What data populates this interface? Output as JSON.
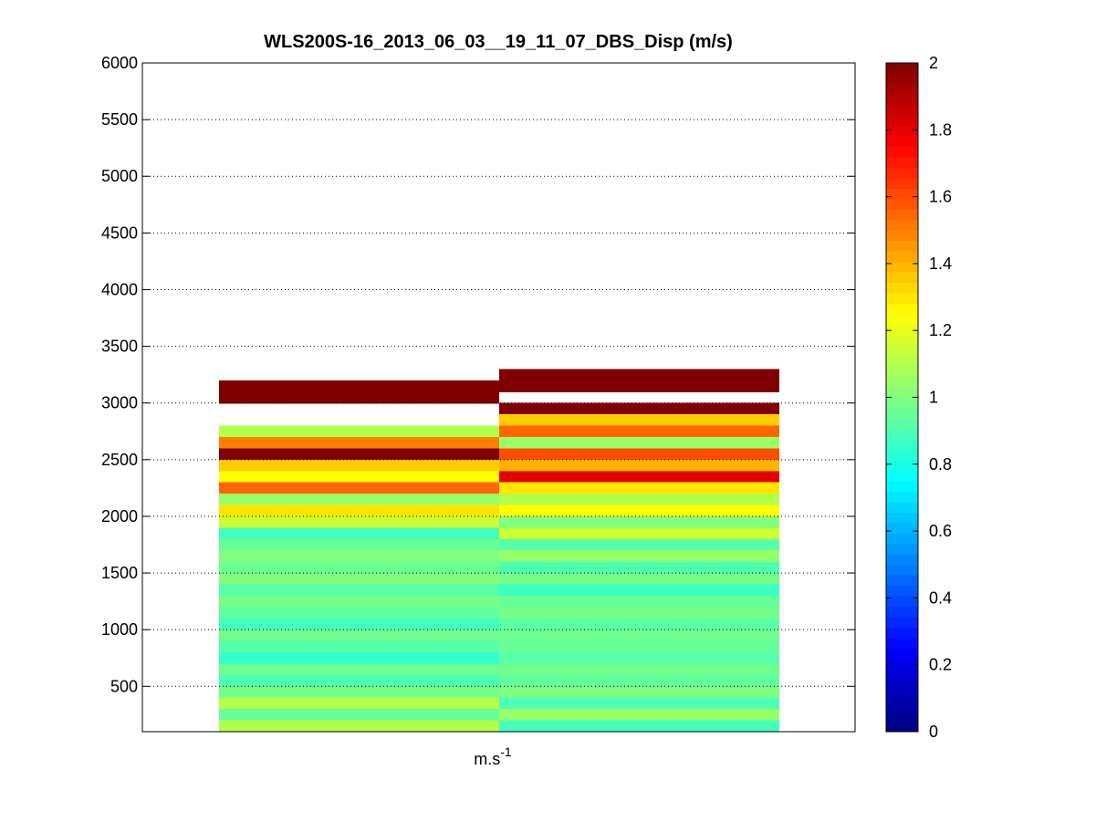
{
  "chart_data": {
    "type": "heatmap",
    "title": "WLS200S-16_2013_06_03__19_11_07_DBS_Disp (m/s)",
    "xlabel_base": "m.s",
    "xlabel_sup": "-1",
    "ylabel": "",
    "ylim": [
      100,
      6000
    ],
    "yticks": [
      500,
      1000,
      1500,
      2000,
      2500,
      3000,
      3500,
      4000,
      4500,
      5000,
      5500,
      6000
    ],
    "grid": "y-dotted",
    "colormap": "jet",
    "clim": [
      0,
      2
    ],
    "colorbar_ticks": [
      0,
      0.2,
      0.4,
      0.6,
      0.8,
      1,
      1.2,
      1.4,
      1.6,
      1.8,
      2
    ],
    "colorbar_placement": "right",
    "bin_height": 50,
    "columns": [
      {
        "bottom": 100,
        "bins": [
          {
            "y": 3000,
            "h": 200,
            "v": 2.0
          },
          {
            "y": 2700,
            "h": 100,
            "v": 1.1
          },
          {
            "y": 2600,
            "h": 100,
            "v": 1.5
          },
          {
            "y": 2500,
            "h": 100,
            "v": 2.0
          },
          {
            "y": 2400,
            "h": 100,
            "v": 1.35
          },
          {
            "y": 2300,
            "h": 100,
            "v": 1.25
          },
          {
            "y": 2200,
            "h": 100,
            "v": 1.55
          },
          {
            "y": 2100,
            "h": 100,
            "v": 1.05
          },
          {
            "y": 2000,
            "h": 100,
            "v": 1.3
          },
          {
            "y": 1900,
            "h": 100,
            "v": 1.15
          },
          {
            "y": 1800,
            "h": 100,
            "v": 0.88
          },
          {
            "y": 1700,
            "h": 100,
            "v": 0.95
          },
          {
            "y": 1600,
            "h": 100,
            "v": 1.0
          },
          {
            "y": 1500,
            "h": 100,
            "v": 0.96
          },
          {
            "y": 1400,
            "h": 100,
            "v": 1.0
          },
          {
            "y": 1300,
            "h": 100,
            "v": 0.92
          },
          {
            "y": 1200,
            "h": 100,
            "v": 0.98
          },
          {
            "y": 1100,
            "h": 100,
            "v": 0.94
          },
          {
            "y": 1000,
            "h": 100,
            "v": 0.88
          },
          {
            "y": 900,
            "h": 100,
            "v": 0.97
          },
          {
            "y": 800,
            "h": 100,
            "v": 0.92
          },
          {
            "y": 700,
            "h": 100,
            "v": 0.85
          },
          {
            "y": 600,
            "h": 100,
            "v": 0.96
          },
          {
            "y": 500,
            "h": 100,
            "v": 0.9
          },
          {
            "y": 400,
            "h": 100,
            "v": 0.98
          },
          {
            "y": 300,
            "h": 100,
            "v": 1.1
          },
          {
            "y": 200,
            "h": 100,
            "v": 0.95
          },
          {
            "y": 100,
            "h": 100,
            "v": 1.1
          }
        ]
      },
      {
        "bottom": 100,
        "bins": [
          {
            "y": 3100,
            "h": 200,
            "v": 2.0
          },
          {
            "y": 3000,
            "h": 100,
            "v": null
          },
          {
            "y": 2900,
            "h": 100,
            "v": 2.0
          },
          {
            "y": 2800,
            "h": 100,
            "v": 1.35
          },
          {
            "y": 2700,
            "h": 100,
            "v": 1.55
          },
          {
            "y": 2600,
            "h": 100,
            "v": 1.05
          },
          {
            "y": 2500,
            "h": 100,
            "v": 1.6
          },
          {
            "y": 2400,
            "h": 100,
            "v": 1.4
          },
          {
            "y": 2300,
            "h": 100,
            "v": 1.8
          },
          {
            "y": 2200,
            "h": 100,
            "v": 1.3
          },
          {
            "y": 2100,
            "h": 100,
            "v": 1.1
          },
          {
            "y": 2000,
            "h": 100,
            "v": 1.25
          },
          {
            "y": 1900,
            "h": 100,
            "v": 1.0
          },
          {
            "y": 1800,
            "h": 100,
            "v": 1.15
          },
          {
            "y": 1700,
            "h": 100,
            "v": 0.92
          },
          {
            "y": 1600,
            "h": 100,
            "v": 1.05
          },
          {
            "y": 1500,
            "h": 100,
            "v": 0.9
          },
          {
            "y": 1400,
            "h": 100,
            "v": 0.98
          },
          {
            "y": 1300,
            "h": 100,
            "v": 0.87
          },
          {
            "y": 1200,
            "h": 100,
            "v": 0.95
          },
          {
            "y": 1100,
            "h": 100,
            "v": 0.98
          },
          {
            "y": 1000,
            "h": 100,
            "v": 0.93
          },
          {
            "y": 900,
            "h": 100,
            "v": 0.97
          },
          {
            "y": 800,
            "h": 100,
            "v": 0.95
          },
          {
            "y": 700,
            "h": 100,
            "v": 0.92
          },
          {
            "y": 600,
            "h": 100,
            "v": 0.97
          },
          {
            "y": 500,
            "h": 100,
            "v": 0.94
          },
          {
            "y": 400,
            "h": 100,
            "v": 1.0
          },
          {
            "y": 300,
            "h": 100,
            "v": 0.9
          },
          {
            "y": 200,
            "h": 100,
            "v": 1.05
          },
          {
            "y": 100,
            "h": 100,
            "v": 0.88
          }
        ]
      }
    ]
  }
}
